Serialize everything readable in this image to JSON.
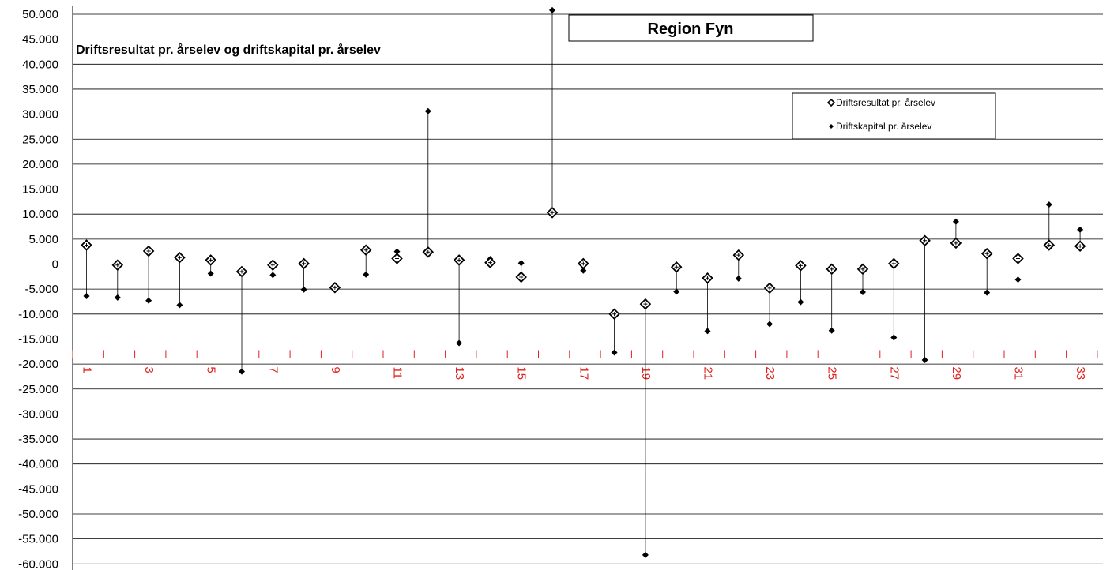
{
  "chart_data": {
    "type": "scatter",
    "title": "Region Fyn",
    "subtitle": "Driftsresultat pr. årselev og driftskapital pr. årselev",
    "xlabel": "",
    "ylabel": "",
    "ylim": [
      -60000,
      52000
    ],
    "y_ticks": [
      50000,
      45000,
      40000,
      35000,
      30000,
      25000,
      20000,
      15000,
      10000,
      5000,
      0,
      -5000,
      -10000,
      -15000,
      -20000,
      -25000,
      -30000,
      -35000,
      -40000,
      -45000,
      -50000,
      -55000,
      -60000
    ],
    "y_tick_labels": [
      "50.000",
      "45.000",
      "40.000",
      "35.000",
      "30.000",
      "25.000",
      "20.000",
      "15.000",
      "10.000",
      "5.000",
      "0",
      "-5.000",
      "-10.000",
      "-15.000",
      "-20.000",
      "-25.000",
      "-30.000",
      "-35.000",
      "-40.000",
      "-45.000",
      "-50.000",
      "-55.000",
      "-60.000"
    ],
    "x": [
      1,
      2,
      3,
      4,
      5,
      6,
      7,
      8,
      9,
      10,
      11,
      12,
      13,
      14,
      15,
      16,
      17,
      18,
      19,
      20,
      21,
      22,
      23,
      24,
      25,
      26,
      27,
      28,
      29,
      30,
      31,
      32,
      33
    ],
    "x_tick_labels": [
      "1",
      "3",
      "5",
      "7",
      "9",
      "11",
      "13",
      "15",
      "17",
      "19",
      "21",
      "23",
      "25",
      "27",
      "29",
      "31",
      "33"
    ],
    "x_axis_crossing": -18000,
    "grid": "horizontal",
    "legend_position": "top-right",
    "colors": {
      "axis": "#e0201a",
      "markers": "#000000",
      "grid": "#000000"
    },
    "series": [
      {
        "name": "Driftsresultat pr. årselev",
        "marker": "hollow-diamond",
        "values": [
          3800,
          -200,
          2600,
          1300,
          800,
          -1500,
          -200,
          100,
          -4700,
          2800,
          1100,
          2400,
          800,
          300,
          -2600,
          10300,
          100,
          -10000,
          -8000,
          -600,
          -2800,
          1800,
          -4800,
          -300,
          -1000,
          -1000,
          100,
          4700,
          4200,
          2100,
          1100,
          3800,
          3600
        ]
      },
      {
        "name": "Driftskapital pr. årselev",
        "marker": "filled-diamond",
        "values": [
          -6400,
          -6700,
          -7300,
          -8200,
          -1900,
          -21500,
          -2200,
          -5100,
          -5200,
          -2100,
          2500,
          30600,
          -15800,
          1000,
          200,
          50800,
          -1300,
          -17700,
          -58200,
          -5500,
          -13400,
          -2900,
          -12000,
          -7600,
          -13300,
          -5600,
          -14700,
          -19200,
          8500,
          -5700,
          -3100,
          11900,
          6900
        ]
      }
    ]
  }
}
